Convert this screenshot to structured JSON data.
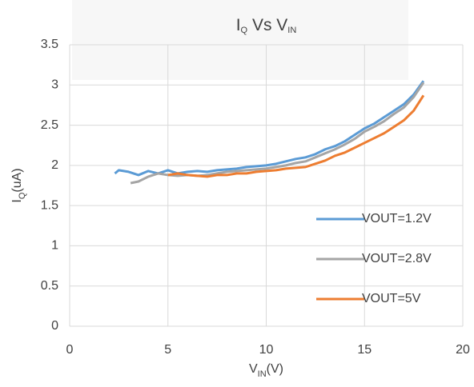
{
  "chart_data": {
    "type": "line",
    "title": [
      {
        "text": "I"
      },
      {
        "text": "Q",
        "sub": true
      },
      {
        "text": " Vs V"
      },
      {
        "text": "IN",
        "sub": true
      }
    ],
    "xlabel": [
      {
        "text": "V"
      },
      {
        "text": "IN",
        "sub": true
      },
      {
        "text": "(V)"
      }
    ],
    "ylabel": [
      {
        "text": "I"
      },
      {
        "text": "Q",
        "sub": true
      },
      {
        "text": "(uA)"
      }
    ],
    "xlim": [
      0,
      20
    ],
    "xticks": [
      0,
      5,
      10,
      15,
      20
    ],
    "ylim": [
      0,
      3.5
    ],
    "yticks": [
      0,
      0.5,
      1,
      1.5,
      2,
      2.5,
      3,
      3.5
    ],
    "grid": true,
    "legend": "lower right",
    "series": [
      {
        "name": "VOUT=1.2V",
        "color": "#5b9bd5",
        "x": [
          2.3,
          2.5,
          3,
          3.5,
          4,
          4.5,
          5,
          5.5,
          6,
          6.5,
          7,
          7.5,
          8,
          8.5,
          9,
          9.5,
          10,
          10.5,
          11,
          11.5,
          12,
          12.5,
          13,
          13.5,
          14,
          14.5,
          15,
          15.5,
          16,
          16.5,
          17,
          17.5,
          18
        ],
        "values": [
          1.9,
          1.94,
          1.92,
          1.88,
          1.93,
          1.9,
          1.94,
          1.9,
          1.92,
          1.93,
          1.92,
          1.94,
          1.95,
          1.96,
          1.98,
          1.99,
          2.0,
          2.02,
          2.05,
          2.08,
          2.1,
          2.14,
          2.2,
          2.24,
          2.3,
          2.38,
          2.46,
          2.52,
          2.6,
          2.68,
          2.76,
          2.88,
          3.05
        ]
      },
      {
        "name": "VOUT=2.8V",
        "color": "#a5a5a5",
        "x": [
          3.1,
          3.5,
          4,
          4.5,
          5,
          5.5,
          6,
          6.5,
          7,
          7.5,
          8,
          8.5,
          9,
          9.5,
          10,
          10.5,
          11,
          11.5,
          12,
          12.5,
          13,
          13.5,
          14,
          14.5,
          15,
          15.5,
          16,
          16.5,
          17,
          17.5,
          18
        ],
        "values": [
          1.78,
          1.8,
          1.86,
          1.9,
          1.88,
          1.87,
          1.88,
          1.87,
          1.88,
          1.9,
          1.92,
          1.93,
          1.94,
          1.95,
          1.96,
          1.98,
          2.0,
          2.03,
          2.05,
          2.1,
          2.15,
          2.2,
          2.26,
          2.33,
          2.42,
          2.48,
          2.55,
          2.64,
          2.72,
          2.85,
          3.03
        ]
      },
      {
        "name": "VOUT=5V",
        "color": "#ed7d31",
        "x": [
          5,
          5.5,
          6,
          6.5,
          7,
          7.5,
          8,
          8.5,
          9,
          9.5,
          10,
          10.5,
          11,
          11.5,
          12,
          12.5,
          13,
          13.5,
          14,
          14.5,
          15,
          15.5,
          16,
          16.5,
          17,
          17.5,
          18
        ],
        "values": [
          1.88,
          1.9,
          1.88,
          1.87,
          1.86,
          1.88,
          1.88,
          1.9,
          1.9,
          1.92,
          1.93,
          1.94,
          1.96,
          1.97,
          1.98,
          2.02,
          2.06,
          2.12,
          2.16,
          2.22,
          2.28,
          2.34,
          2.4,
          2.48,
          2.56,
          2.68,
          2.87
        ]
      }
    ]
  }
}
